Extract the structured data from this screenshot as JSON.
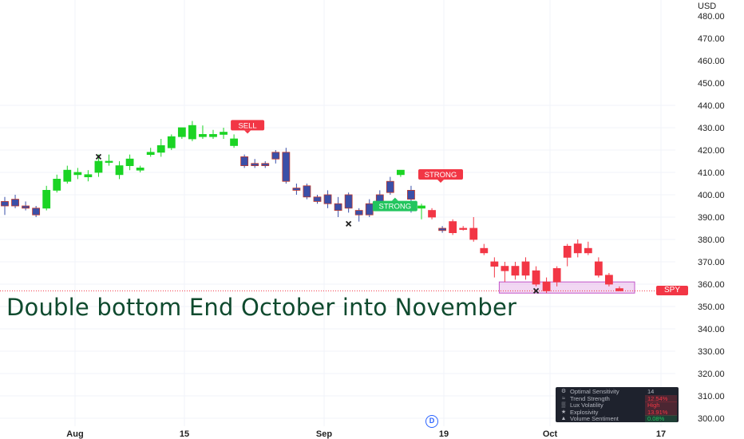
{
  "chart_data": {
    "type": "candlestick",
    "currency": "USD",
    "ylim": [
      296,
      484
    ],
    "y_ticks": [
      "300.00",
      "310.00",
      "320.00",
      "330.00",
      "340.00",
      "350.00",
      "360.00",
      "370.00",
      "380.00",
      "390.00",
      "400.00",
      "410.00",
      "420.00",
      "430.00",
      "440.00",
      "450.00",
      "460.00",
      "470.00",
      "480.00"
    ],
    "x_ticks": [
      "Aug",
      "15",
      "Sep",
      "19",
      "Oct",
      "17"
    ],
    "headline": "Double bottom End October into November",
    "last_price_label": "SPY",
    "interval_badge": "D",
    "candles": [
      {
        "o": 395,
        "h": 399,
        "l": 391,
        "c": 397,
        "color": "purple"
      },
      {
        "o": 398,
        "h": 400,
        "l": 394,
        "c": 395,
        "color": "purple"
      },
      {
        "o": 395,
        "h": 397,
        "l": 393,
        "c": 394,
        "color": "purple"
      },
      {
        "o": 394,
        "h": 395,
        "l": 390,
        "c": 391,
        "color": "purple"
      },
      {
        "o": 394,
        "h": 404,
        "l": 393,
        "c": 402,
        "color": "green"
      },
      {
        "o": 402,
        "h": 409,
        "l": 401,
        "c": 407,
        "color": "green"
      },
      {
        "o": 406,
        "h": 413,
        "l": 405,
        "c": 411,
        "color": "green"
      },
      {
        "o": 410,
        "h": 412,
        "l": 407,
        "c": 409,
        "color": "green"
      },
      {
        "o": 408,
        "h": 411,
        "l": 406,
        "c": 409,
        "color": "green"
      },
      {
        "o": 410,
        "h": 418,
        "l": 408,
        "c": 415,
        "color": "green"
      },
      {
        "o": 415,
        "h": 418,
        "l": 413,
        "c": 415,
        "color": "green"
      },
      {
        "o": 409,
        "h": 415,
        "l": 407,
        "c": 413,
        "color": "green"
      },
      {
        "o": 413,
        "h": 418,
        "l": 411,
        "c": 416,
        "color": "green"
      },
      {
        "o": 412,
        "h": 413,
        "l": 410,
        "c": 411,
        "color": "green"
      },
      {
        "o": 418,
        "h": 421,
        "l": 417,
        "c": 419,
        "color": "green"
      },
      {
        "o": 419,
        "h": 425,
        "l": 417,
        "c": 422,
        "color": "green"
      },
      {
        "o": 421,
        "h": 427,
        "l": 420,
        "c": 426,
        "color": "green"
      },
      {
        "o": 426,
        "h": 430,
        "l": 425,
        "c": 430,
        "color": "green"
      },
      {
        "o": 425,
        "h": 433,
        "l": 424,
        "c": 431,
        "color": "green"
      },
      {
        "o": 427,
        "h": 431,
        "l": 425,
        "c": 426,
        "color": "green"
      },
      {
        "o": 426,
        "h": 429,
        "l": 425,
        "c": 427,
        "color": "green"
      },
      {
        "o": 427,
        "h": 430,
        "l": 425,
        "c": 428,
        "color": "green"
      },
      {
        "o": 425,
        "h": 427,
        "l": 421,
        "c": 422,
        "color": "green"
      },
      {
        "o": 417,
        "h": 418,
        "l": 412,
        "c": 413,
        "color": "purple"
      },
      {
        "o": 414,
        "h": 416,
        "l": 412,
        "c": 413,
        "color": "purple"
      },
      {
        "o": 414,
        "h": 415,
        "l": 412,
        "c": 413,
        "color": "purple"
      },
      {
        "o": 416,
        "h": 420,
        "l": 414,
        "c": 419,
        "color": "purple"
      },
      {
        "o": 419,
        "h": 421,
        "l": 405,
        "c": 406,
        "color": "purple"
      },
      {
        "o": 402,
        "h": 405,
        "l": 400,
        "c": 403,
        "color": "purple"
      },
      {
        "o": 404,
        "h": 405,
        "l": 398,
        "c": 399,
        "color": "purple"
      },
      {
        "o": 399,
        "h": 400,
        "l": 396,
        "c": 397,
        "color": "purple"
      },
      {
        "o": 400,
        "h": 402,
        "l": 394,
        "c": 396,
        "color": "purple"
      },
      {
        "o": 396,
        "h": 399,
        "l": 390,
        "c": 393,
        "color": "purple"
      },
      {
        "o": 394,
        "h": 401,
        "l": 392,
        "c": 400,
        "color": "purple"
      },
      {
        "o": 393,
        "h": 394,
        "l": 388,
        "c": 391,
        "color": "purple"
      },
      {
        "o": 391,
        "h": 398,
        "l": 390,
        "c": 396,
        "color": "purple"
      },
      {
        "o": 394,
        "h": 402,
        "l": 393,
        "c": 400,
        "color": "purple"
      },
      {
        "o": 401,
        "h": 408,
        "l": 400,
        "c": 406,
        "color": "purple"
      },
      {
        "o": 409,
        "h": 411,
        "l": 408,
        "c": 411,
        "color": "green"
      },
      {
        "o": 402,
        "h": 404,
        "l": 392,
        "c": 398,
        "color": "purple"
      },
      {
        "o": 394,
        "h": 396,
        "l": 389,
        "c": 395,
        "color": "green"
      },
      {
        "o": 393,
        "h": 394,
        "l": 389,
        "c": 390,
        "color": "red"
      },
      {
        "o": 385,
        "h": 386,
        "l": 383,
        "c": 384,
        "color": "purple"
      },
      {
        "o": 388,
        "h": 389,
        "l": 382,
        "c": 383,
        "color": "red"
      },
      {
        "o": 385,
        "h": 386,
        "l": 384,
        "c": 385,
        "color": "red"
      },
      {
        "o": 385,
        "h": 390,
        "l": 379,
        "c": 380,
        "color": "red"
      },
      {
        "o": 376,
        "h": 378,
        "l": 373,
        "c": 374,
        "color": "red"
      },
      {
        "o": 370,
        "h": 372,
        "l": 363,
        "c": 368,
        "color": "red"
      },
      {
        "o": 368,
        "h": 370,
        "l": 361,
        "c": 366,
        "color": "red"
      },
      {
        "o": 368,
        "h": 370,
        "l": 362,
        "c": 364,
        "color": "red"
      },
      {
        "o": 364,
        "h": 372,
        "l": 362,
        "c": 370,
        "color": "red"
      },
      {
        "o": 366,
        "h": 368,
        "l": 359,
        "c": 360,
        "color": "red"
      },
      {
        "o": 361,
        "h": 363,
        "l": 356,
        "c": 357,
        "color": "red"
      },
      {
        "o": 361,
        "h": 368,
        "l": 359,
        "c": 367,
        "color": "red"
      },
      {
        "o": 372,
        "h": 378,
        "l": 368,
        "c": 377,
        "color": "red"
      },
      {
        "o": 378,
        "h": 380,
        "l": 372,
        "c": 374,
        "color": "red"
      },
      {
        "o": 376,
        "h": 379,
        "l": 373,
        "c": 374,
        "color": "red"
      },
      {
        "o": 370,
        "h": 372,
        "l": 363,
        "c": 364,
        "color": "red"
      },
      {
        "o": 364,
        "h": 365,
        "l": 359,
        "c": 360,
        "color": "red"
      },
      {
        "o": 358,
        "h": 359,
        "l": 357,
        "c": 357,
        "color": "red"
      }
    ],
    "signals": [
      {
        "type": "sell",
        "label": "SELL",
        "bar": 22,
        "price": 427
      },
      {
        "type": "sell",
        "label": "STRONG",
        "bar": 40,
        "price": 405
      },
      {
        "type": "buy",
        "label": "STRONG",
        "bar": 37,
        "price": 398
      }
    ],
    "cross_markers": [
      {
        "bar": 9,
        "price": 417
      },
      {
        "bar": 33,
        "price": 387
      },
      {
        "bar": 51,
        "price": 357
      }
    ],
    "support_zone": {
      "price_low": 356,
      "price_high": 361,
      "from_bar": 48,
      "to_bar": 60
    },
    "current_price": 357,
    "colors": {
      "green": "#1bd424",
      "red": "#f23645",
      "purple": "#3a4fa8",
      "buy": "#22c55e",
      "sell": "#f23645",
      "zone": "#e8b7ea"
    },
    "dashboard": [
      {
        "label": "Optimal Sensitivity",
        "value": "14",
        "icon": "settings-icon",
        "value_color": "#b2b5be"
      },
      {
        "label": "Trend Strength",
        "value": "12.54%",
        "icon": "trend-strength-icon",
        "value_color": "#f23645"
      },
      {
        "label": "Lux Volatility",
        "value": "High",
        "icon": "volatility-icon",
        "value_color": "#f23645"
      },
      {
        "label": "Explosivity",
        "value": "13.91%",
        "icon": "explosivity-icon",
        "value_color": "#f23645"
      },
      {
        "label": "Volume Sentiment",
        "value": "0.08%",
        "icon": "volume-sentiment-icon",
        "value_color": "#22c55e"
      }
    ]
  }
}
